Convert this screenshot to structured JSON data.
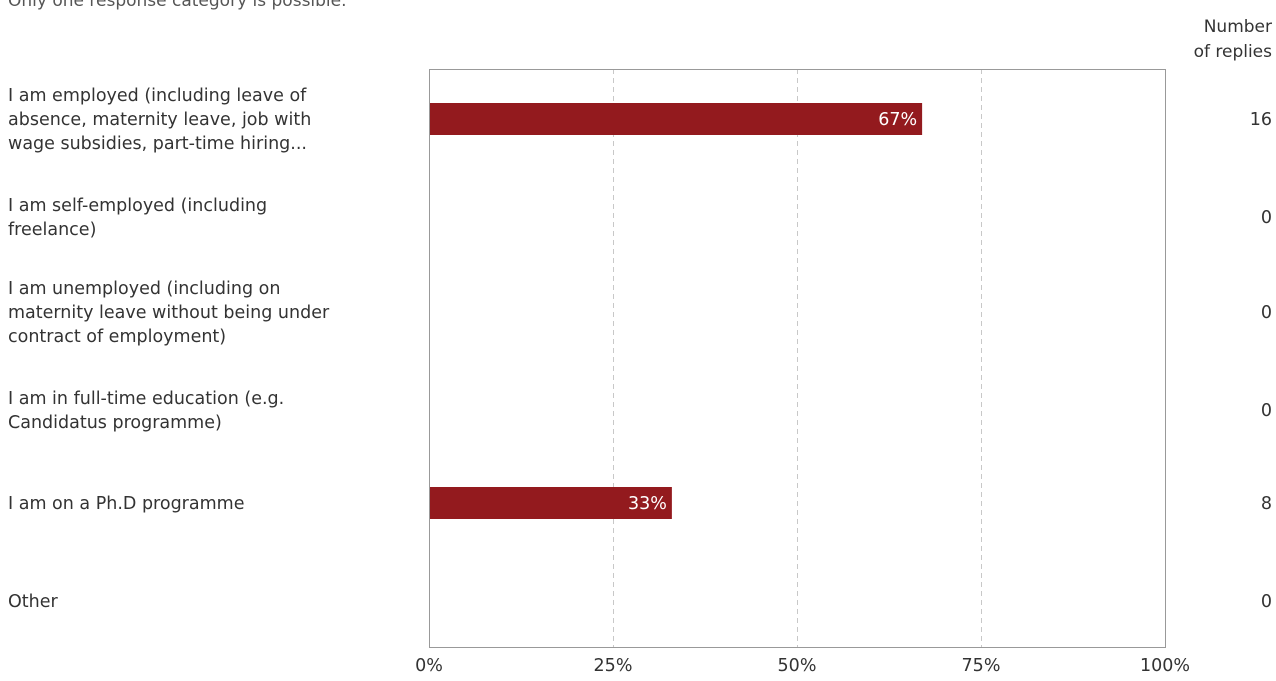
{
  "subtitle": "Only one response category is possible.",
  "count_header": [
    "Number",
    "of replies"
  ],
  "colors": {
    "bar": "#931a1e",
    "frame": "#999999",
    "grid": "#c8c8c8"
  },
  "chart_data": {
    "type": "bar",
    "orientation": "horizontal",
    "categories": [
      [
        "I am employed (including leave of",
        "absence, maternity leave, job with",
        "wage subsidies, part-time hiring..."
      ],
      [
        "I am self-employed (including",
        "freelance)"
      ],
      [
        "I am unemployed (including on",
        "maternity leave without being under",
        "contract of employment)"
      ],
      [
        "I am in full-time education (e.g.",
        "Candidatus programme)"
      ],
      [
        "I am on a Ph.D programme"
      ],
      [
        "Other"
      ]
    ],
    "values": [
      67,
      0,
      0,
      0,
      33,
      0
    ],
    "value_labels": [
      "67%",
      "",
      "",
      "",
      "33%",
      ""
    ],
    "counts": [
      "16",
      "0",
      "0",
      "0",
      "8",
      "0"
    ],
    "xlim": [
      0,
      100
    ],
    "xticks": [
      0,
      25,
      50,
      75,
      100
    ],
    "xtick_labels": [
      "0%",
      "25%",
      "50%",
      "75%",
      "100%"
    ],
    "grid": "vertical dashed",
    "legend": "none"
  }
}
